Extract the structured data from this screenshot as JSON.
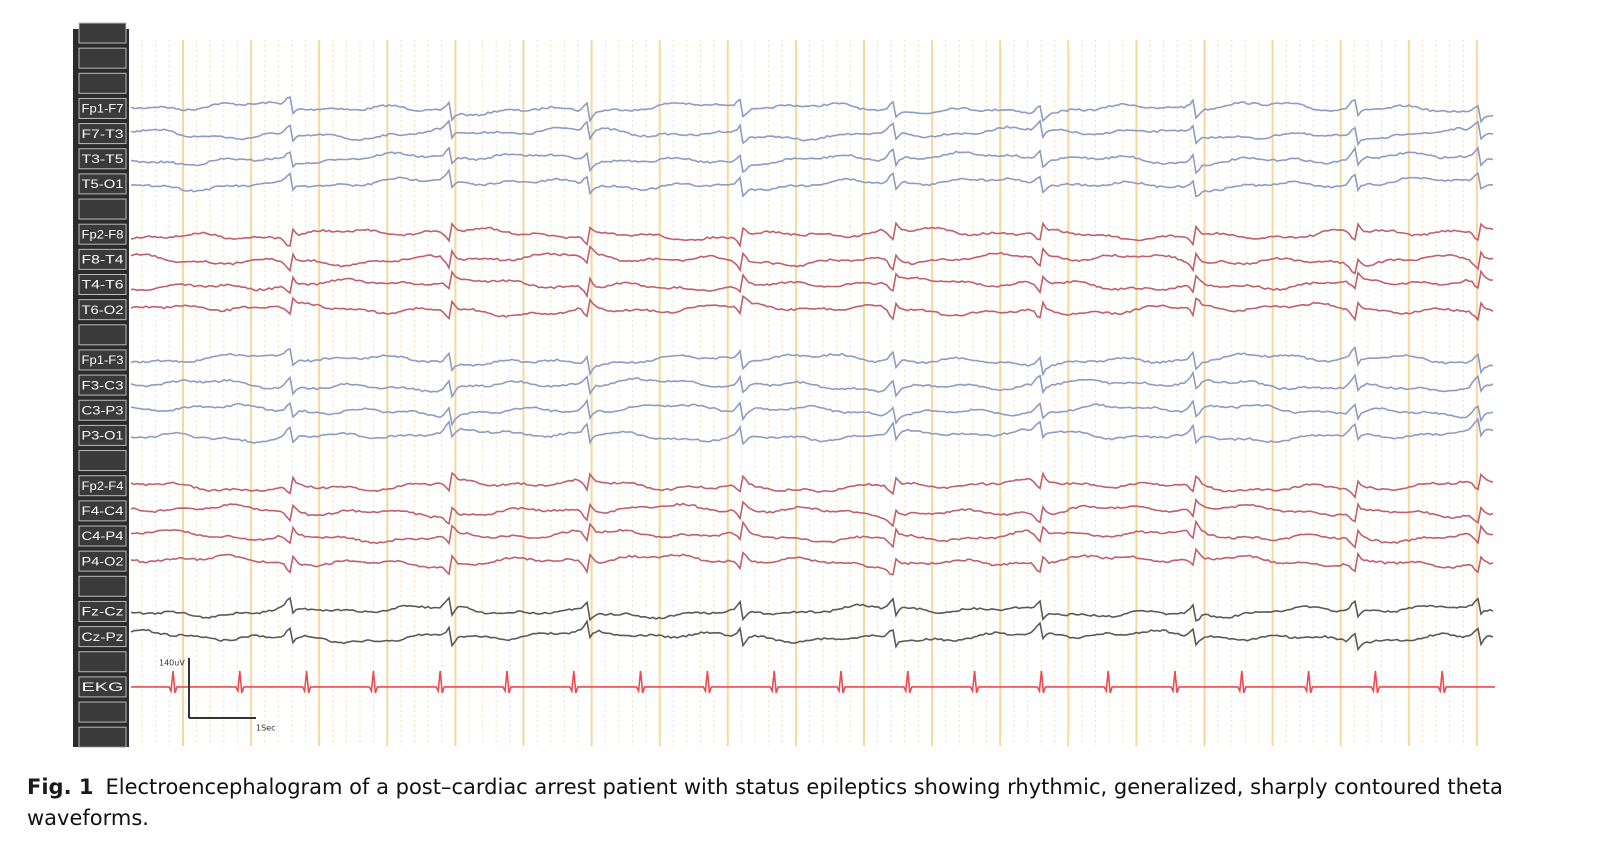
{
  "figure": {
    "groups": [
      {
        "color": "#8c9cc4",
        "channels": [
          "Fp1-F7",
          "F7-T3",
          "T3-T5",
          "T5-O1"
        ]
      },
      {
        "color": "#c0606c",
        "channels": [
          "Fp2-F8",
          "F8-T4",
          "T4-T6",
          "T6-O2"
        ]
      },
      {
        "color": "#8c9cc4",
        "channels": [
          "Fp1-F3",
          "F3-C3",
          "C3-P3",
          "P3-O1"
        ]
      },
      {
        "color": "#c0606c",
        "channels": [
          "Fp2-F4",
          "F4-C4",
          "C4-P4",
          "P4-O2"
        ]
      },
      {
        "color": "#5a5a5a",
        "channels": [
          "Fz-Cz",
          "Cz-Pz"
        ]
      },
      {
        "color": "#ee4a50",
        "channels": [
          "EKG"
        ]
      }
    ],
    "scale": {
      "amplitude": "140uV",
      "time": "1Sec"
    }
  },
  "caption": {
    "label": "Fig. 1",
    "text": "Electroencephalogram of a post–cardiac arrest patient with status epileptics showing rhythmic, generalized, sharply contoured theta waveforms."
  }
}
